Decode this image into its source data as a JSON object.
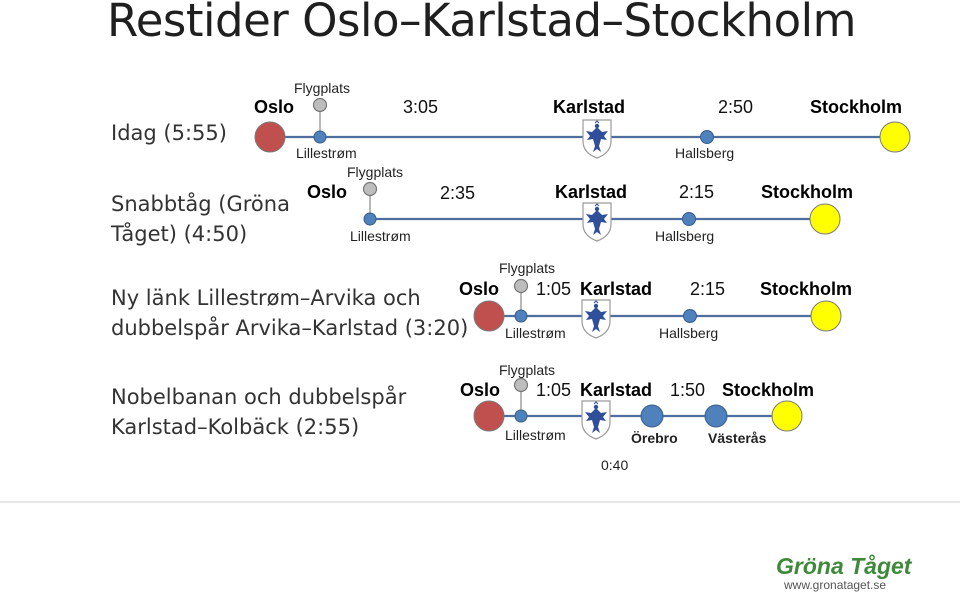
{
  "title": "Restider Oslo–Karlstad–Stockholm",
  "rows": [
    {
      "label_lines": [
        "Idag (5:55)"
      ],
      "oslo": "Oslo",
      "flygplats": "Flygplats",
      "lillestrom": "Lillestrøm",
      "time1": "3:05",
      "karlstad": "Karlstad",
      "time2": "2:50",
      "hallsberg": "Hallsberg",
      "stockholm": "Stockholm"
    },
    {
      "label_lines": [
        "Snabbtåg (Gröna",
        "Tåget) (4:50)"
      ],
      "oslo": "Oslo",
      "flygplats": "Flygplats",
      "lillestrom": "Lillestrøm",
      "time1": "2:35",
      "karlstad": "Karlstad",
      "time2": "2:15",
      "hallsberg": "Hallsberg",
      "stockholm": "Stockholm"
    },
    {
      "label_lines": [
        "Ny länk Lillestrøm–Arvika och",
        "dubbelspår Arvika–Karlstad (3:20)"
      ],
      "oslo": "Oslo",
      "flygplats": "Flygplats",
      "lillestrom": "Lillestrøm",
      "time1": "1:05",
      "karlstad": "Karlstad",
      "time2": "2:15",
      "hallsberg": "Hallsberg",
      "stockholm": "Stockholm"
    },
    {
      "label_lines": [
        "Nobelbanan och dubbelspår",
        "Karlstad–Kolbäck (2:55)"
      ],
      "oslo": "Oslo",
      "flygplats": "Flygplats",
      "lillestrom": "Lillestrøm",
      "time1": "1:05",
      "karlstad": "Karlstad",
      "time2": "1:50",
      "orebro": "Örebro",
      "vasteras": "Västerås",
      "time3": "0:40",
      "stockholm": "Stockholm"
    }
  ],
  "colors": {
    "oslo_node": "#c0504d",
    "stockholm_node": "#ffff00",
    "line": "#4f6ea0",
    "station_node": "#4f81bd",
    "airport_node": "#a6a6a6",
    "logo_green": "#3f8a3a"
  },
  "icons": [
    "karlstad-coat-of-arms-icon",
    "gronataget-logo-icon"
  ],
  "footer": {
    "logo_text": "Gröna Tåget",
    "url": "www.gronataget.se"
  }
}
